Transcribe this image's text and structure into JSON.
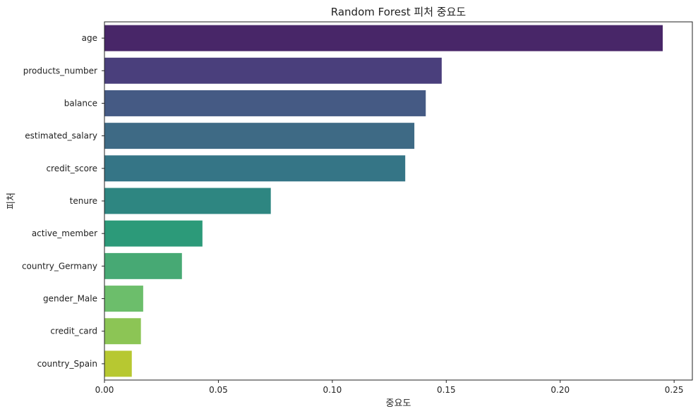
{
  "chart_data": {
    "type": "bar",
    "orientation": "horizontal",
    "title": "Random Forest 피처 중요도",
    "xlabel": "중요도",
    "ylabel": "피처",
    "xlim": [
      0,
      0.258
    ],
    "xticks": [
      0.0,
      0.05,
      0.1,
      0.15,
      0.2,
      0.25
    ],
    "xtick_labels": [
      "0.00",
      "0.05",
      "0.10",
      "0.15",
      "0.20",
      "0.25"
    ],
    "grid": false,
    "categories": [
      "age",
      "products_number",
      "balance",
      "estimated_salary",
      "credit_score",
      "tenure",
      "active_member",
      "country_Germany",
      "gender_Male",
      "credit_card",
      "country_Spain"
    ],
    "values": [
      0.245,
      0.148,
      0.141,
      0.136,
      0.132,
      0.073,
      0.043,
      0.034,
      0.017,
      0.016,
      0.012
    ],
    "colors": [
      "#482668",
      "#4a3f7c",
      "#455a84",
      "#3e6a85",
      "#357586",
      "#2e8681",
      "#2c9a79",
      "#47a974",
      "#6cbe6b",
      "#8cc555",
      "#b7c831"
    ]
  }
}
